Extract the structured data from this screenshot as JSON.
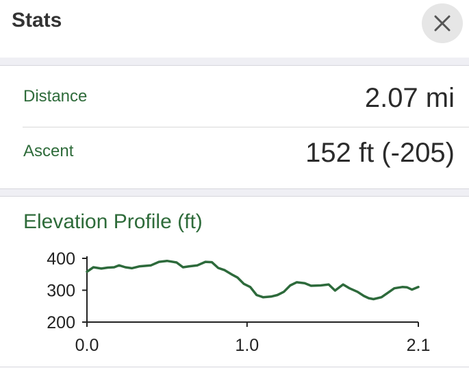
{
  "header": {
    "title": "Stats",
    "close_icon": "close-icon"
  },
  "stats": [
    {
      "label": "Distance",
      "value": "2.07 mi"
    },
    {
      "label": "Ascent",
      "value": "152 ft (-205)"
    }
  ],
  "elevation": {
    "title": "Elevation Profile (ft)"
  },
  "colors": {
    "accent": "#2e6b3a",
    "line": "#2d6a3b",
    "panel_bg": "#efeff4",
    "close_bg": "#e6e6e6"
  },
  "chart_data": {
    "type": "line",
    "title": "Elevation Profile (ft)",
    "xlabel": "",
    "ylabel": "",
    "xlim": [
      0,
      2.07
    ],
    "ylim": [
      200,
      400
    ],
    "x_ticks": [
      "0.0",
      "1.0",
      "2.1"
    ],
    "y_ticks": [
      "400",
      "300",
      "200"
    ],
    "grid": false,
    "series": [
      {
        "x": [
          0,
          0.04,
          0.09,
          0.13,
          0.17,
          0.2,
          0.24,
          0.28,
          0.33,
          0.4,
          0.45,
          0.5,
          0.56,
          0.6,
          0.64,
          0.69,
          0.74,
          0.78,
          0.82,
          0.86,
          0.91,
          0.94,
          0.98,
          1.02,
          1.06,
          1.1,
          1.15,
          1.19,
          1.23,
          1.27,
          1.31,
          1.36,
          1.4,
          1.46,
          1.51,
          1.55,
          1.6,
          1.64,
          1.69,
          1.73,
          1.76,
          1.79,
          1.84,
          1.88,
          1.92,
          1.97,
          2.0,
          2.03,
          2.07
        ],
        "y": [
          358,
          372,
          368,
          371,
          372,
          378,
          372,
          369,
          375,
          378,
          389,
          392,
          387,
          372,
          375,
          378,
          389,
          388,
          370,
          363,
          348,
          340,
          320,
          310,
          285,
          278,
          280,
          285,
          295,
          315,
          325,
          322,
          314,
          315,
          318,
          299,
          318,
          306,
          295,
          282,
          275,
          272,
          278,
          292,
          306,
          310,
          309,
          302,
          310
        ]
      }
    ]
  }
}
